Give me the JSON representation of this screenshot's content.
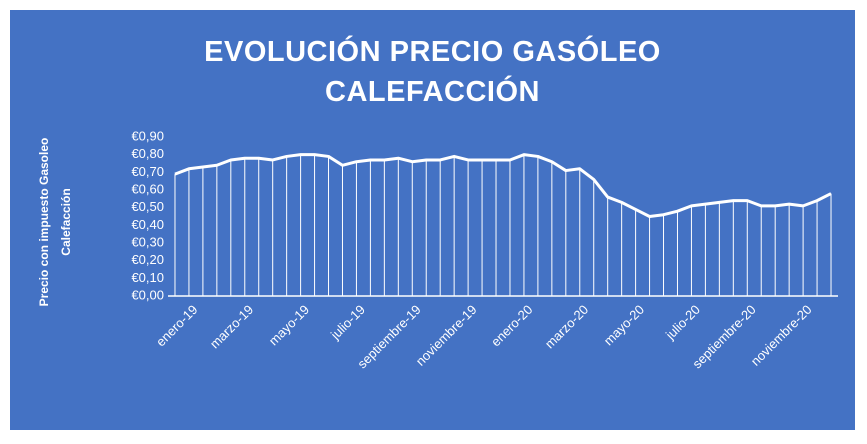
{
  "chart_data": {
    "type": "line",
    "title": "EVOLUCIÓN PRECIO GASÓLEO CALEFACCIÓN",
    "y_label": "Precio con impuesto Gasoleo Calefacción",
    "categories": [
      "enero-19",
      null,
      null,
      null,
      "marzo-19",
      null,
      null,
      null,
      "mayo-19",
      null,
      null,
      null,
      "julio-19",
      null,
      null,
      null,
      "septiembre-19",
      null,
      null,
      null,
      "noviembre-19",
      null,
      null,
      null,
      "enero-20",
      null,
      null,
      null,
      "marzo-20",
      null,
      null,
      null,
      "mayo-20",
      null,
      null,
      null,
      "julio-20",
      null,
      null,
      null,
      "septiembre-20",
      null,
      null,
      null,
      "noviembre-20",
      null,
      null,
      null
    ],
    "series": [
      {
        "name": "Precio",
        "color": "#ffffff",
        "values": [
          0.69,
          0.72,
          0.73,
          0.74,
          0.77,
          0.78,
          0.78,
          0.77,
          0.79,
          0.8,
          0.8,
          0.79,
          0.74,
          0.76,
          0.77,
          0.77,
          0.78,
          0.76,
          0.77,
          0.77,
          0.79,
          0.77,
          0.77,
          0.77,
          0.77,
          0.8,
          0.79,
          0.76,
          0.71,
          0.72,
          0.66,
          0.56,
          0.53,
          0.49,
          0.45,
          0.46,
          0.48,
          0.51,
          0.52,
          0.53,
          0.54,
          0.54,
          0.51,
          0.51,
          0.52,
          0.51,
          0.54,
          0.58
        ]
      }
    ],
    "ylim": [
      0,
      0.9
    ],
    "yticks": [
      {
        "value": 0,
        "label": "€0,00"
      },
      {
        "value": 0.1,
        "label": "€0,10"
      },
      {
        "value": 0.2,
        "label": "€0,20"
      },
      {
        "value": 0.3,
        "label": "€0,30"
      },
      {
        "value": 0.4,
        "label": "€0,40"
      },
      {
        "value": 0.5,
        "label": "€0,50"
      },
      {
        "value": 0.6,
        "label": "€0,60"
      },
      {
        "value": 0.7,
        "label": "€0,70"
      },
      {
        "value": 0.8,
        "label": "€0,80"
      },
      {
        "value": 0.9,
        "label": "€0,90"
      }
    ],
    "drop_lines": true
  }
}
